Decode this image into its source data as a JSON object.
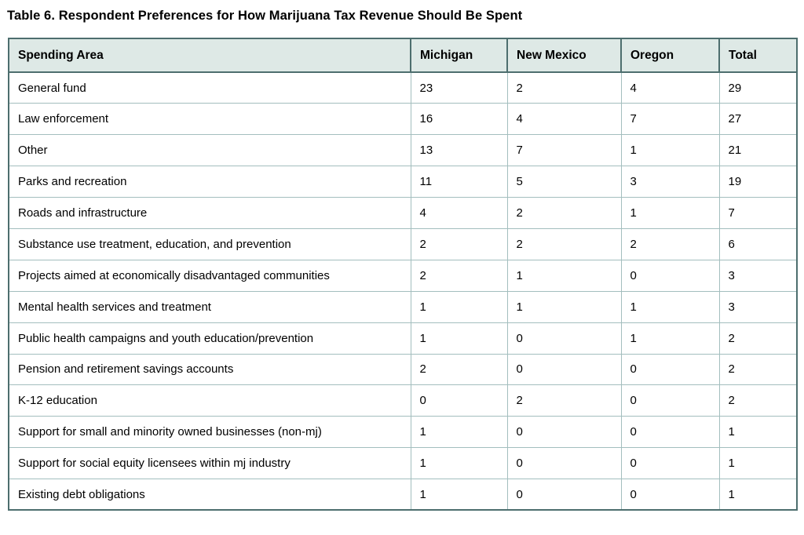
{
  "title": "Table 6. Respondent Preferences for How Marijuana Tax Revenue Should Be Spent",
  "colors": {
    "header_bg": "#dee9e6",
    "border_dark": "#4d6e6e",
    "border_light": "#a3bebe",
    "text": "#000000"
  },
  "table": {
    "columns": [
      "Spending Area",
      "Michigan",
      "New Mexico",
      "Oregon",
      "Total"
    ],
    "rows": [
      {
        "spending_area": "General fund",
        "michigan": "23",
        "new_mexico": "2",
        "oregon": "4",
        "total": "29"
      },
      {
        "spending_area": "Law enforcement",
        "michigan": "16",
        "new_mexico": "4",
        "oregon": "7",
        "total": "27"
      },
      {
        "spending_area": "Other",
        "michigan": "13",
        "new_mexico": "7",
        "oregon": "1",
        "total": "21"
      },
      {
        "spending_area": "Parks and recreation",
        "michigan": "11",
        "new_mexico": "5",
        "oregon": "3",
        "total": "19"
      },
      {
        "spending_area": "Roads and infrastructure",
        "michigan": "4",
        "new_mexico": "2",
        "oregon": "1",
        "total": "7"
      },
      {
        "spending_area": "Substance use treatment, education, and prevention",
        "michigan": "2",
        "new_mexico": "2",
        "oregon": "2",
        "total": "6"
      },
      {
        "spending_area": "Projects aimed at economically disadvantaged communities",
        "michigan": "2",
        "new_mexico": "1",
        "oregon": "0",
        "total": "3"
      },
      {
        "spending_area": "Mental health services and treatment",
        "michigan": "1",
        "new_mexico": "1",
        "oregon": "1",
        "total": "3"
      },
      {
        "spending_area": "Public health campaigns and youth education/prevention",
        "michigan": "1",
        "new_mexico": "0",
        "oregon": "1",
        "total": "2"
      },
      {
        "spending_area": "Pension and retirement savings accounts",
        "michigan": "2",
        "new_mexico": "0",
        "oregon": "0",
        "total": "2"
      },
      {
        "spending_area": "K-12 education",
        "michigan": "0",
        "new_mexico": "2",
        "oregon": "0",
        "total": "2"
      },
      {
        "spending_area": "Support for small and minority owned businesses (non-mj)",
        "michigan": "1",
        "new_mexico": "0",
        "oregon": "0",
        "total": "1"
      },
      {
        "spending_area": "Support for social equity licensees within mj industry",
        "michigan": "1",
        "new_mexico": "0",
        "oregon": "0",
        "total": "1"
      },
      {
        "spending_area": "Existing debt obligations",
        "michigan": "1",
        "new_mexico": "0",
        "oregon": "0",
        "total": "1"
      }
    ]
  }
}
